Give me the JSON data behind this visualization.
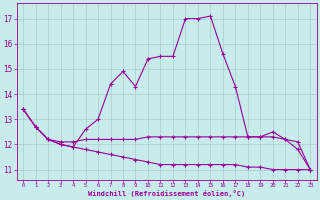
{
  "xlabel": "Windchill (Refroidissement éolien,°C)",
  "background_color": "#c8ecec",
  "line_color": "#990099",
  "grid_color": "#aacccc",
  "x_ticks": [
    0,
    1,
    2,
    3,
    4,
    5,
    6,
    7,
    8,
    9,
    10,
    11,
    12,
    13,
    14,
    15,
    16,
    17,
    18,
    19,
    20,
    21,
    22,
    23
  ],
  "y_ticks": [
    11,
    12,
    13,
    14,
    15,
    16,
    17
  ],
  "ylim": [
    10.6,
    17.6
  ],
  "xlim": [
    -0.5,
    23.5
  ],
  "line1_x": [
    0,
    1,
    2,
    3,
    4,
    5,
    6,
    7,
    8,
    9,
    10,
    11,
    12,
    13,
    14,
    15,
    16,
    17,
    18,
    19,
    20,
    21,
    22,
    23
  ],
  "line1_y": [
    13.4,
    12.7,
    12.2,
    12.0,
    11.9,
    12.6,
    13.0,
    14.4,
    14.9,
    14.3,
    15.4,
    15.5,
    15.5,
    17.0,
    17.0,
    17.1,
    15.6,
    14.3,
    12.3,
    12.3,
    12.5,
    12.2,
    11.8,
    11.0
  ],
  "line2_x": [
    0,
    1,
    2,
    3,
    4,
    5,
    6,
    7,
    8,
    9,
    10,
    11,
    12,
    13,
    14,
    15,
    16,
    17,
    18,
    19,
    20,
    21,
    22,
    23
  ],
  "line2_y": [
    13.4,
    12.7,
    12.2,
    12.1,
    12.1,
    12.2,
    12.2,
    12.2,
    12.2,
    12.2,
    12.3,
    12.3,
    12.3,
    12.3,
    12.3,
    12.3,
    12.3,
    12.3,
    12.3,
    12.3,
    12.3,
    12.2,
    12.1,
    11.0
  ],
  "line3_x": [
    0,
    1,
    2,
    3,
    4,
    5,
    6,
    7,
    8,
    9,
    10,
    11,
    12,
    13,
    14,
    15,
    16,
    17,
    18,
    19,
    20,
    21,
    22,
    23
  ],
  "line3_y": [
    13.4,
    12.7,
    12.2,
    12.0,
    11.9,
    11.8,
    11.7,
    11.6,
    11.5,
    11.4,
    11.3,
    11.2,
    11.2,
    11.2,
    11.2,
    11.2,
    11.2,
    11.2,
    11.1,
    11.1,
    11.0,
    11.0,
    11.0,
    11.0
  ]
}
